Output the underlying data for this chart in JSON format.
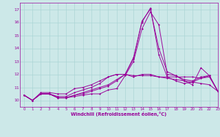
{
  "xlabel": "Windchill (Refroidissement éolien,°C)",
  "xlim": [
    -0.5,
    23
  ],
  "ylim": [
    9.5,
    17.5
  ],
  "yticks": [
    10,
    11,
    12,
    13,
    14,
    15,
    16,
    17
  ],
  "xticks": [
    0,
    1,
    2,
    3,
    4,
    5,
    6,
    7,
    8,
    9,
    10,
    11,
    12,
    13,
    14,
    15,
    16,
    17,
    18,
    19,
    20,
    21,
    22,
    23
  ],
  "bg_color": "#cce8e8",
  "line_color": "#990099",
  "grid_color": "#aad4d4",
  "series": [
    [
      10.4,
      10.0,
      10.5,
      10.5,
      10.2,
      10.2,
      10.3,
      10.4,
      10.5,
      10.5,
      10.8,
      10.9,
      11.9,
      13.0,
      15.5,
      16.8,
      15.8,
      12.0,
      11.9,
      11.5,
      11.2,
      12.5,
      11.9,
      10.7
    ],
    [
      10.4,
      10.0,
      10.5,
      10.5,
      10.2,
      10.2,
      10.4,
      10.5,
      10.7,
      10.9,
      11.1,
      11.5,
      12.0,
      13.2,
      16.1,
      17.0,
      14.0,
      12.2,
      11.9,
      11.6,
      11.5,
      11.8,
      11.9,
      10.7
    ],
    [
      10.4,
      10.0,
      10.5,
      10.5,
      10.2,
      10.2,
      10.4,
      10.6,
      10.8,
      11.0,
      11.2,
      11.6,
      12.0,
      13.3,
      16.0,
      17.1,
      13.5,
      11.8,
      11.5,
      11.3,
      11.4,
      11.7,
      11.9,
      10.7
    ],
    [
      10.4,
      10.0,
      10.5,
      10.5,
      10.3,
      10.3,
      10.6,
      10.8,
      11.0,
      11.3,
      11.8,
      12.0,
      12.0,
      11.8,
      12.0,
      12.0,
      11.8,
      11.8,
      11.8,
      11.8,
      11.8,
      11.7,
      11.8,
      10.7
    ],
    [
      10.4,
      10.0,
      10.6,
      10.6,
      10.5,
      10.5,
      10.9,
      11.0,
      11.2,
      11.5,
      11.8,
      12.0,
      12.0,
      11.9,
      11.9,
      11.9,
      11.8,
      11.7,
      11.6,
      11.5,
      11.4,
      11.3,
      11.2,
      10.7
    ]
  ]
}
